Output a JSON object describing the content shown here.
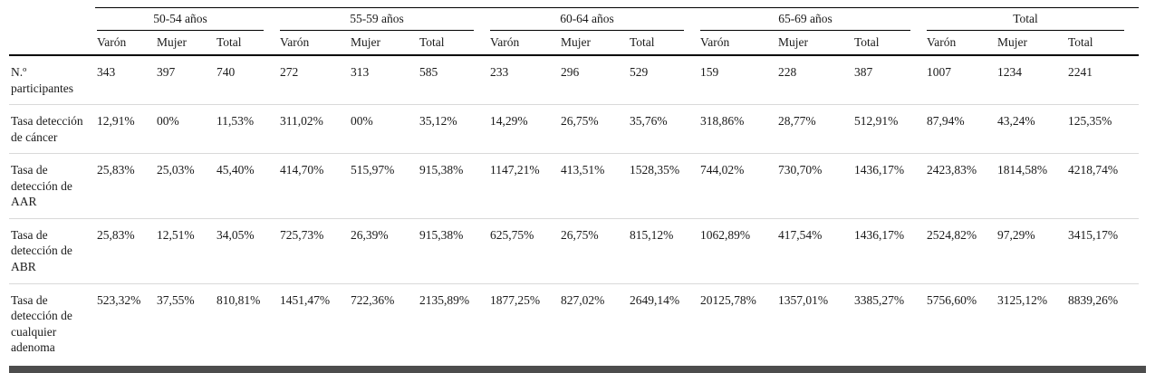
{
  "table": {
    "stub_header": "",
    "groups": [
      {
        "label": "50-54 años",
        "cols": 3
      },
      {
        "label": "55-59 años",
        "cols": 3
      },
      {
        "label": "60-64 años",
        "cols": 3
      },
      {
        "label": "65-69 años",
        "cols": 3
      },
      {
        "label": "Total",
        "cols": 3
      }
    ],
    "subheaders": [
      "Varón",
      "Mujer",
      "Total"
    ],
    "rows": [
      {
        "label": "N.º participantes",
        "values": [
          "343",
          "397",
          "740",
          "272",
          "313",
          "585",
          "233",
          "296",
          "529",
          "159",
          "228",
          "387",
          "1007",
          "1234",
          "2241"
        ]
      },
      {
        "label": "Tasa detección de cáncer",
        "values": [
          "12,91%",
          "00%",
          "11,53%",
          "311,02%",
          "00%",
          "35,12%",
          "14,29%",
          "26,75%",
          "35,76%",
          "318,86%",
          "28,77%",
          "512,91%",
          "87,94%",
          "43,24%",
          "125,35%"
        ]
      },
      {
        "label": "Tasa de detección de AAR",
        "values": [
          "25,83%",
          "25,03%",
          "45,40%",
          "414,70%",
          "515,97%",
          "915,38%",
          "1147,21%",
          "413,51%",
          "1528,35%",
          "744,02%",
          "730,70%",
          "1436,17%",
          "2423,83%",
          "1814,58%",
          "4218,74%"
        ]
      },
      {
        "label": "Tasa de detección de ABR",
        "values": [
          "25,83%",
          "12,51%",
          "34,05%",
          "725,73%",
          "26,39%",
          "915,38%",
          "625,75%",
          "26,75%",
          "815,12%",
          "1062,89%",
          "417,54%",
          "1436,17%",
          "2524,82%",
          "97,29%",
          "3415,17%"
        ]
      },
      {
        "label": "Tasa de detección de cualquier adenoma",
        "values": [
          "523,32%",
          "37,55%",
          "810,81%",
          "1451,47%",
          "722,36%",
          "2135,89%",
          "1877,25%",
          "827,02%",
          "2649,14%",
          "20125,78%",
          "1357,01%",
          "3385,27%",
          "5756,60%",
          "3125,12%",
          "8839,26%"
        ]
      }
    ]
  },
  "colors": {
    "rule_dark": "#000000",
    "row_separator": "#d9d9d9",
    "bottom_bar": "#4d4d4d",
    "text": "#1a1a1a",
    "background": "#ffffff"
  }
}
